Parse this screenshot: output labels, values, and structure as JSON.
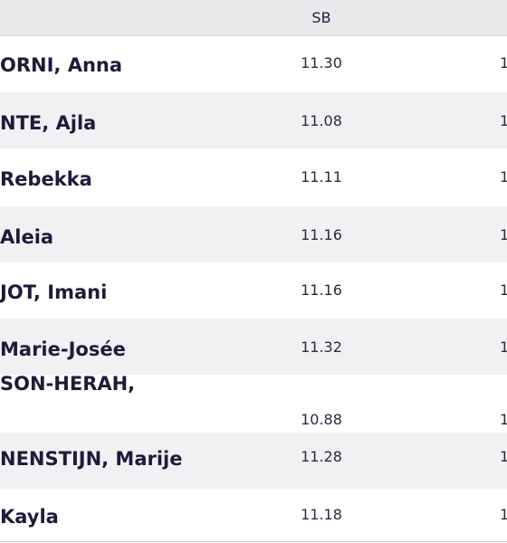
{
  "header": {
    "columns": [
      "SB"
    ]
  },
  "rows": [
    {
      "name": "ORNI, Anna",
      "sb": "11.30",
      "next": "1"
    },
    {
      "name": "NTE, Ajla",
      "sb": "11.08",
      "next": "1"
    },
    {
      "name": "Rebekka",
      "sb": "11.11",
      "next": "1"
    },
    {
      "name": "Aleia",
      "sb": "11.16",
      "next": "1"
    },
    {
      "name": "JOT, Imani",
      "sb": "11.16",
      "next": "1"
    },
    {
      "name": "Marie-Josée",
      "sb": "11.32",
      "next": "1"
    },
    {
      "name": "SON-HERAH,",
      "sb": "10.88",
      "next": "1"
    },
    {
      "name": "NENSTIJN, Marije",
      "sb": "11.28",
      "next": "1"
    },
    {
      "name": "Kayla",
      "sb": "11.18",
      "next": "1"
    }
  ]
}
